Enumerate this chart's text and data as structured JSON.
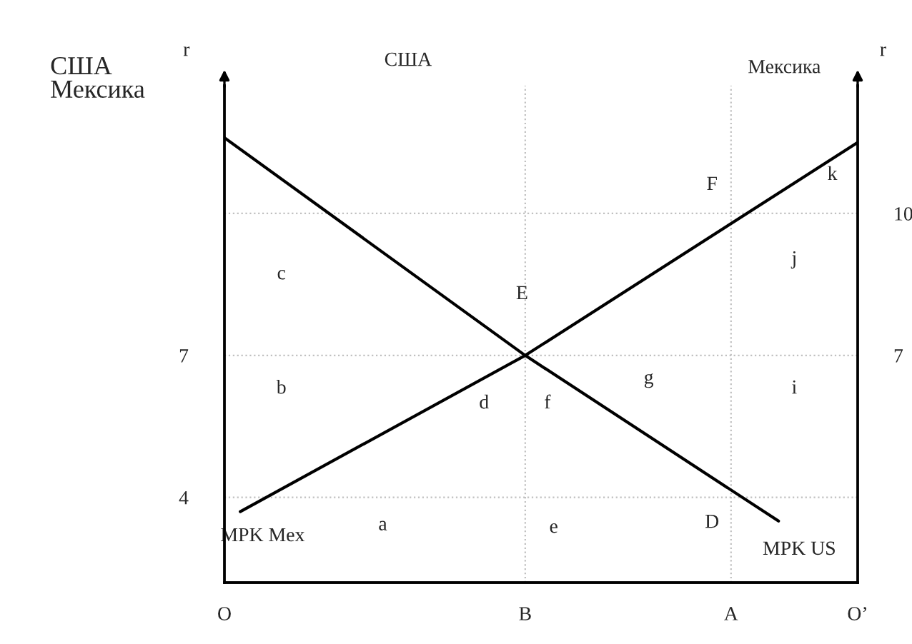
{
  "chart_data": {
    "type": "line",
    "title": "США",
    "ylabel": "r",
    "y2label": "r",
    "categories": [
      "O",
      null,
      null,
      null,
      null,
      null,
      null,
      null,
      null,
      null,
      null,
      null,
      null,
      null,
      null,
      null,
      null,
      null,
      null,
      "B",
      null,
      null,
      null,
      null,
      null,
      null,
      null,
      null,
      null,
      null,
      null,
      null,
      "A",
      null,
      null,
      null,
      null,
      null,
      null,
      null,
      "O’"
    ],
    "series": [
      {
        "name": "MPK US",
        "color": "#000000",
        "values": [
          11.6,
          null,
          null,
          null,
          null,
          null,
          null,
          null,
          null,
          null,
          null,
          null,
          null,
          null,
          null,
          null,
          null,
          null,
          null,
          7,
          null,
          null,
          null,
          null,
          null,
          null,
          null,
          null,
          null,
          null,
          null,
          null,
          null,
          null,
          null,
          3.5,
          null,
          null,
          null,
          null,
          null
        ]
      },
      {
        "name": "MPK Mex",
        "color": "#000000",
        "values": [
          null,
          3.7,
          null,
          null,
          null,
          null,
          null,
          null,
          null,
          null,
          null,
          null,
          null,
          null,
          null,
          null,
          null,
          null,
          null,
          7,
          null,
          null,
          null,
          null,
          null,
          null,
          null,
          null,
          null,
          null,
          null,
          null,
          null,
          null,
          null,
          null,
          null,
          null,
          null,
          null,
          11.5
        ]
      }
    ],
    "ylim": [
      2.2,
      12.7
    ],
    "y2lim": [
      2.2,
      12.7
    ],
    "yticks": [
      4,
      7
    ],
    "y2ticks": [
      7,
      10
    ],
    "ref_lines": [
      {
        "axis": "y",
        "value": 7,
        "label": null,
        "color": "#c0c0c0",
        "line_style": "dotted"
      },
      {
        "axis": "y",
        "value": 4,
        "label": null,
        "color": "#c0c0c0",
        "line_style": "dotted"
      },
      {
        "axis": "y",
        "value": 10,
        "label": null,
        "color": "#c0c0c0",
        "line_style": "dotted"
      },
      {
        "axis": "x",
        "value": "B",
        "label": null,
        "color": "#c0c0c0",
        "line_style": "dotted"
      },
      {
        "axis": "x",
        "value": "A",
        "label": null,
        "color": "#c0c0c0",
        "line_style": "dotted"
      }
    ],
    "annotations": [
      "США\nМексика",
      "Мексика",
      "a",
      "b",
      "c",
      "d",
      "e",
      "f",
      "g",
      "i",
      "j",
      "k",
      "E",
      "F",
      "D"
    ],
    "grid": false,
    "legend": false,
    "marker": "none",
    "line_style": "solid"
  }
}
